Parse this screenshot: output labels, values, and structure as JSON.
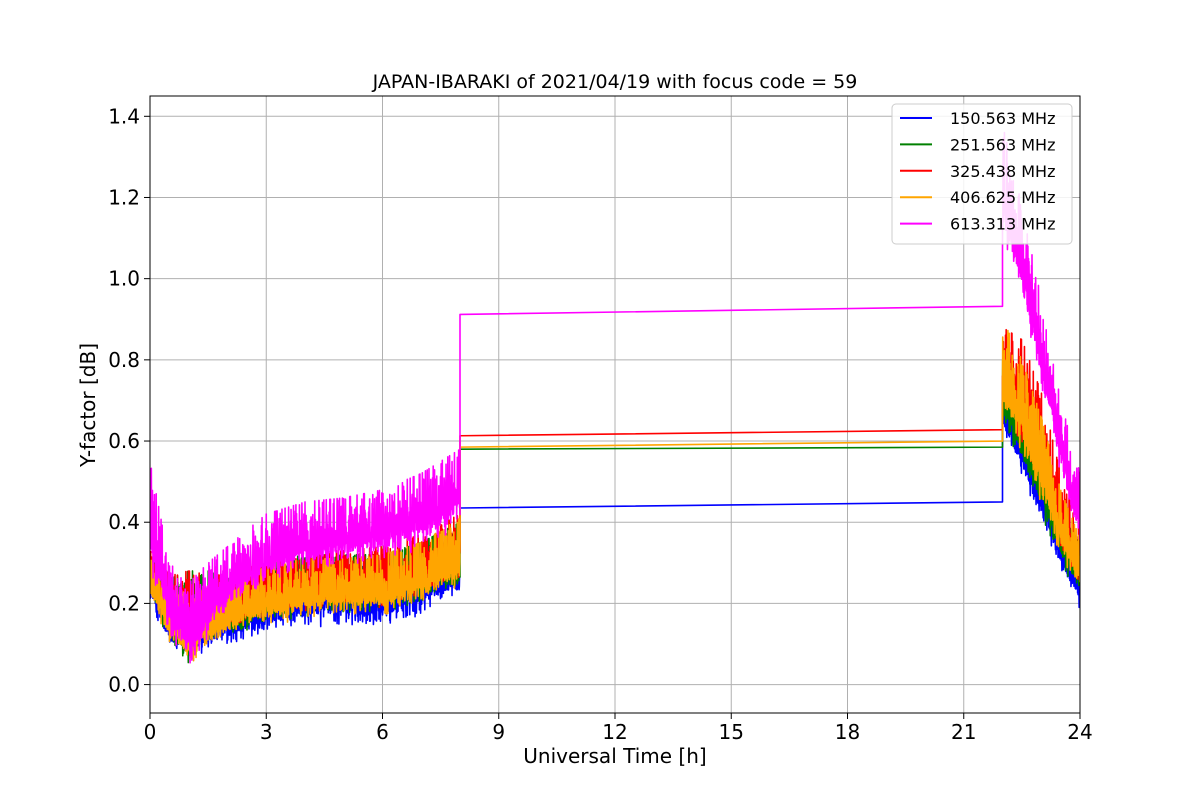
{
  "chart_data": {
    "type": "line",
    "title": "JAPAN-IBARAKI of 2021/04/19 with focus code = 59",
    "xlabel": "Universal Time [h]",
    "ylabel": "Y-factor [dB]",
    "xlim": [
      0,
      24
    ],
    "ylim": [
      -0.07,
      1.45
    ],
    "xticks": [
      0,
      3,
      6,
      9,
      12,
      15,
      18,
      21,
      24
    ],
    "yticks": [
      0.0,
      0.2,
      0.4,
      0.6,
      0.8,
      1.0,
      1.2,
      1.4
    ],
    "xtick_labels": [
      "0",
      "3",
      "6",
      "9",
      "12",
      "15",
      "18",
      "21",
      "24"
    ],
    "ytick_labels": [
      "0.0",
      "0.2",
      "0.4",
      "0.6",
      "0.8",
      "1.0",
      "1.2",
      "1.4"
    ],
    "grid": true,
    "legend_position": "top-right",
    "series": [
      {
        "name": "150.563 MHz",
        "color": "#0000ff",
        "segment1": {
          "x_range": [
            0,
            8.0
          ],
          "envelope_low": [
            [
              0,
              0.2
            ],
            [
              0.5,
              0.06
            ],
            [
              1,
              0.05
            ],
            [
              1.5,
              0.07
            ],
            [
              2,
              0.08
            ],
            [
              3,
              0.1
            ],
            [
              4,
              0.12
            ],
            [
              5,
              0.13
            ],
            [
              6,
              0.12
            ],
            [
              7,
              0.15
            ],
            [
              8,
              0.2
            ]
          ],
          "envelope_high": [
            [
              0,
              0.3
            ],
            [
              0.5,
              0.22
            ],
            [
              1,
              0.18
            ],
            [
              1.5,
              0.2
            ],
            [
              2,
              0.22
            ],
            [
              3,
              0.28
            ],
            [
              4,
              0.3
            ],
            [
              5,
              0.3
            ],
            [
              6,
              0.3
            ],
            [
              7,
              0.33
            ],
            [
              8,
              0.38
            ]
          ]
        },
        "flat": {
          "x": [
            8.0,
            22.0
          ],
          "y": [
            0.435,
            0.45
          ]
        },
        "segment2": {
          "x_range": [
            22.0,
            24
          ],
          "envelope_low": [
            [
              22,
              0.6
            ],
            [
              22.5,
              0.5
            ],
            [
              23,
              0.38
            ],
            [
              23.5,
              0.26
            ],
            [
              24,
              0.17
            ]
          ],
          "envelope_high": [
            [
              22,
              0.75
            ],
            [
              22.5,
              0.65
            ],
            [
              23,
              0.55
            ],
            [
              23.5,
              0.4
            ],
            [
              24,
              0.32
            ]
          ]
        }
      },
      {
        "name": "251.563 MHz",
        "color": "#008000",
        "segment1": {
          "x_range": [
            0,
            8.0
          ],
          "envelope_low": [
            [
              0,
              0.22
            ],
            [
              0.5,
              0.08
            ],
            [
              1,
              0.02
            ],
            [
              1.5,
              0.08
            ],
            [
              2,
              0.1
            ],
            [
              3,
              0.13
            ],
            [
              4,
              0.15
            ],
            [
              5,
              0.16
            ],
            [
              6,
              0.16
            ],
            [
              7,
              0.18
            ],
            [
              8,
              0.22
            ]
          ],
          "envelope_high": [
            [
              0,
              0.32
            ],
            [
              0.5,
              0.26
            ],
            [
              1,
              0.28
            ],
            [
              1.5,
              0.28
            ],
            [
              2,
              0.26
            ],
            [
              3,
              0.3
            ],
            [
              4,
              0.32
            ],
            [
              5,
              0.32
            ],
            [
              6,
              0.32
            ],
            [
              7,
              0.35
            ],
            [
              8,
              0.4
            ]
          ]
        },
        "flat": {
          "x": [
            8.0,
            22.0
          ],
          "y": [
            0.58,
            0.585
          ]
        },
        "segment2": {
          "x_range": [
            22.0,
            24
          ],
          "envelope_low": [
            [
              22,
              0.62
            ],
            [
              22.5,
              0.52
            ],
            [
              23,
              0.4
            ],
            [
              23.5,
              0.28
            ],
            [
              24,
              0.2
            ]
          ],
          "envelope_high": [
            [
              22,
              0.8
            ],
            [
              22.5,
              0.7
            ],
            [
              23,
              0.58
            ],
            [
              23.5,
              0.44
            ],
            [
              24,
              0.34
            ]
          ]
        }
      },
      {
        "name": "325.438 MHz",
        "color": "#ff0000",
        "segment1": {
          "x_range": [
            0,
            8.0
          ],
          "envelope_low": [
            [
              0,
              0.22
            ],
            [
              0.5,
              0.1
            ],
            [
              1,
              0.05
            ],
            [
              1.5,
              0.1
            ],
            [
              2,
              0.12
            ],
            [
              3,
              0.15
            ],
            [
              4,
              0.16
            ],
            [
              5,
              0.17
            ],
            [
              6,
              0.17
            ],
            [
              7,
              0.2
            ],
            [
              8,
              0.24
            ]
          ],
          "envelope_high": [
            [
              0,
              0.33
            ],
            [
              0.5,
              0.27
            ],
            [
              1,
              0.28
            ],
            [
              1.5,
              0.27
            ],
            [
              2,
              0.27
            ],
            [
              3,
              0.31
            ],
            [
              4,
              0.33
            ],
            [
              5,
              0.33
            ],
            [
              6,
              0.34
            ],
            [
              7,
              0.37
            ],
            [
              8,
              0.42
            ]
          ]
        },
        "flat": {
          "x": [
            8.0,
            22.0
          ],
          "y": [
            0.613,
            0.628
          ]
        },
        "segment2": {
          "x_range": [
            22.0,
            24
          ],
          "envelope_low": [
            [
              22,
              0.66
            ],
            [
              22.5,
              0.56
            ],
            [
              23,
              0.45
            ],
            [
              23.5,
              0.32
            ],
            [
              24,
              0.22
            ]
          ],
          "envelope_high": [
            [
              22,
              0.88
            ],
            [
              22.5,
              0.85
            ],
            [
              23,
              0.72
            ],
            [
              23.5,
              0.52
            ],
            [
              24,
              0.38
            ]
          ]
        }
      },
      {
        "name": "406.625 MHz",
        "color": "#ffa500",
        "segment1": {
          "x_range": [
            0,
            8.0
          ],
          "envelope_low": [
            [
              0,
              0.2
            ],
            [
              0.5,
              0.08
            ],
            [
              1,
              0.02
            ],
            [
              1.5,
              0.06
            ],
            [
              2,
              0.1
            ],
            [
              3,
              0.13
            ],
            [
              4,
              0.14
            ],
            [
              5,
              0.15
            ],
            [
              6,
              0.15
            ],
            [
              7,
              0.18
            ],
            [
              8,
              0.22
            ]
          ],
          "envelope_high": [
            [
              0,
              0.31
            ],
            [
              0.5,
              0.25
            ],
            [
              1,
              0.22
            ],
            [
              1.5,
              0.24
            ],
            [
              2,
              0.25
            ],
            [
              3,
              0.29
            ],
            [
              4,
              0.31
            ],
            [
              5,
              0.31
            ],
            [
              6,
              0.32
            ],
            [
              7,
              0.35
            ],
            [
              8,
              0.41
            ]
          ]
        },
        "flat": {
          "x": [
            8.0,
            22.0
          ],
          "y": [
            0.585,
            0.6
          ]
        },
        "segment2": {
          "x_range": [
            22.0,
            24
          ],
          "envelope_low": [
            [
              22,
              0.64
            ],
            [
              22.5,
              0.54
            ],
            [
              23,
              0.42
            ],
            [
              23.5,
              0.3
            ],
            [
              24,
              0.21
            ]
          ],
          "envelope_high": [
            [
              22,
              0.9
            ],
            [
              22.5,
              0.8
            ],
            [
              23,
              0.66
            ],
            [
              23.5,
              0.48
            ],
            [
              24,
              0.36
            ]
          ]
        }
      },
      {
        "name": "613.313 MHz",
        "color": "#ff00ff",
        "segment1": {
          "x_range": [
            0,
            8.0
          ],
          "envelope_low": [
            [
              0,
              0.25
            ],
            [
              0.5,
              0.1
            ],
            [
              1,
              0.02
            ],
            [
              1.5,
              0.08
            ],
            [
              2,
              0.16
            ],
            [
              3,
              0.23
            ],
            [
              4,
              0.26
            ],
            [
              5,
              0.27
            ],
            [
              6,
              0.28
            ],
            [
              7,
              0.31
            ],
            [
              8,
              0.36
            ]
          ],
          "envelope_high": [
            [
              0,
              0.55
            ],
            [
              0.5,
              0.3
            ],
            [
              1,
              0.25
            ],
            [
              1.5,
              0.3
            ],
            [
              2,
              0.34
            ],
            [
              3,
              0.42
            ],
            [
              4,
              0.45
            ],
            [
              5,
              0.46
            ],
            [
              6,
              0.48
            ],
            [
              7,
              0.52
            ],
            [
              8,
              0.58
            ]
          ]
        },
        "flat": {
          "x": [
            8.0,
            22.0
          ],
          "y": [
            0.912,
            0.932
          ]
        },
        "segment2": {
          "x_range": [
            22.0,
            24
          ],
          "envelope_low": [
            [
              22,
              1.05
            ],
            [
              22.5,
              0.9
            ],
            [
              23,
              0.7
            ],
            [
              23.5,
              0.5
            ],
            [
              24,
              0.3
            ]
          ],
          "envelope_high": [
            [
              22,
              1.38
            ],
            [
              22.5,
              1.18
            ],
            [
              23,
              0.95
            ],
            [
              23.5,
              0.7
            ],
            [
              24,
              0.52
            ]
          ]
        }
      }
    ]
  }
}
